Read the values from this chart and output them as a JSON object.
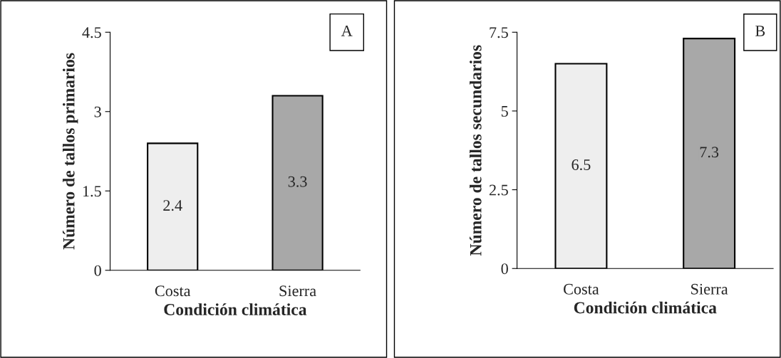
{
  "chart_data": [
    {
      "type": "bar",
      "categories": [
        "Costa",
        "Sierra"
      ],
      "values": [
        2.4,
        3.3
      ],
      "colors": [
        "#eeeeee",
        "#a8a8a8"
      ],
      "xlabel": "Condición climática",
      "ylabel": "Número de tallos primarios",
      "ylim": [
        0,
        4.5
      ],
      "yticks": [
        0,
        1.5,
        3,
        4.5
      ],
      "data_labels": true,
      "grid": false,
      "annotations": [
        "A"
      ]
    },
    {
      "type": "bar",
      "categories": [
        "Costa",
        "Sierra"
      ],
      "values": [
        6.5,
        7.3
      ],
      "colors": [
        "#eeeeee",
        "#a8a8a8"
      ],
      "xlabel": "Condición climática",
      "ylabel": "Número de tallos secundarios",
      "ylim": [
        0,
        7.5
      ],
      "yticks": [
        0,
        2.5,
        5,
        7.5
      ],
      "data_labels": true,
      "grid": false,
      "annotations": [
        "B"
      ]
    }
  ]
}
